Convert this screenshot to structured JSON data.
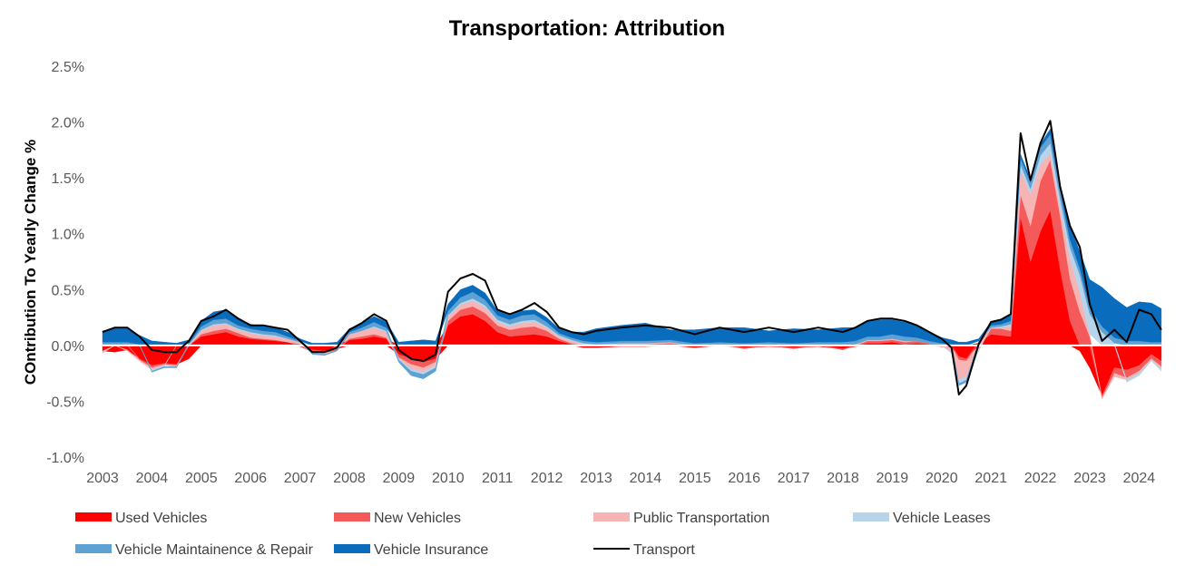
{
  "chart_data": {
    "type": "area",
    "title": "Transportation: Attribution",
    "xlabel": "",
    "ylabel": "COntribution To Yearly Change %",
    "ylim": [
      -0.01,
      0.025
    ],
    "y_ticks": [
      "2.5%",
      "2.0%",
      "1.5%",
      "1.0%",
      "0.5%",
      "0.0%",
      "-0.5%",
      "-1.0%"
    ],
    "y_tick_values": [
      0.025,
      0.02,
      0.015,
      0.01,
      0.005,
      0.0,
      -0.005,
      -0.01
    ],
    "x_ticks": [
      "2003",
      "2004",
      "2005",
      "2006",
      "2007",
      "2008",
      "2009",
      "2010",
      "2011",
      "2012",
      "2013",
      "2014",
      "2015",
      "2016",
      "2017",
      "2018",
      "2019",
      "2020",
      "2021",
      "2022",
      "2023",
      "2024"
    ],
    "xlim": [
      2003.0,
      2024.45
    ],
    "x": [
      2003.0,
      2003.25,
      2003.5,
      2003.75,
      2004.0,
      2004.25,
      2004.5,
      2004.75,
      2005.0,
      2005.25,
      2005.5,
      2005.75,
      2006.0,
      2006.25,
      2006.5,
      2006.75,
      2007.0,
      2007.25,
      2007.5,
      2007.75,
      2008.0,
      2008.25,
      2008.5,
      2008.75,
      2009.0,
      2009.25,
      2009.5,
      2009.75,
      2010.0,
      2010.25,
      2010.5,
      2010.75,
      2011.0,
      2011.25,
      2011.5,
      2011.75,
      2012.0,
      2012.25,
      2012.5,
      2012.75,
      2013.0,
      2013.5,
      2014.0,
      2014.5,
      2015.0,
      2015.5,
      2016.0,
      2016.5,
      2017.0,
      2017.5,
      2018.0,
      2018.25,
      2018.5,
      2018.75,
      2019.0,
      2019.25,
      2019.5,
      2019.75,
      2020.0,
      2020.2,
      2020.35,
      2020.5,
      2020.75,
      2021.0,
      2021.2,
      2021.4,
      2021.6,
      2021.8,
      2022.0,
      2022.2,
      2022.4,
      2022.6,
      2022.8,
      2023.0,
      2023.25,
      2023.5,
      2023.75,
      2024.0,
      2024.25,
      2024.45
    ],
    "series": [
      {
        "name": "Used Vehicles",
        "color": "#ff0000",
        "values": [
          -0.0005,
          -0.0006,
          -0.0004,
          -0.0012,
          -0.0018,
          -0.0016,
          -0.0017,
          -0.0012,
          0.0008,
          0.001,
          0.0012,
          0.0008,
          0.0006,
          0.0005,
          0.0004,
          0.0003,
          0.0001,
          -0.0004,
          -0.0005,
          -0.0003,
          0.0005,
          0.0006,
          0.0008,
          0.0006,
          -0.0008,
          -0.0012,
          -0.0015,
          -0.0012,
          0.0018,
          0.0026,
          0.0028,
          0.0022,
          0.0012,
          0.0008,
          0.0009,
          0.001,
          0.0008,
          0.0004,
          0.0001,
          -0.0002,
          -0.0002,
          -0.0001,
          -0.0001,
          0.0001,
          -0.0002,
          0.0001,
          -0.0002,
          -0.0001,
          -0.0002,
          -0.0001,
          -0.0003,
          -0.0001,
          0.0002,
          0.0002,
          0.0003,
          0.0001,
          0.0002,
          0.0001,
          -0.0001,
          -0.0002,
          -0.001,
          -0.0012,
          0.0002,
          0.001,
          0.0009,
          0.0008,
          0.0115,
          0.0075,
          0.0102,
          0.0121,
          0.0068,
          0.0022,
          -0.0005,
          -0.002,
          -0.0045,
          -0.002,
          -0.0022,
          -0.0018,
          -0.0008,
          -0.0014
        ]
      },
      {
        "name": "New Vehicles",
        "color": "#f55a5a",
        "values": [
          0.0001,
          0.0,
          0.0001,
          -0.0001,
          -0.0002,
          -0.0001,
          -0.0001,
          0.0,
          0.0002,
          0.0003,
          0.0003,
          0.0003,
          0.0001,
          0.0001,
          0.0001,
          0.0,
          -0.0001,
          -0.0002,
          -0.0002,
          -0.0001,
          0.0001,
          0.0002,
          0.0002,
          0.0001,
          -0.0003,
          -0.0005,
          -0.0005,
          -0.0003,
          0.0004,
          0.0006,
          0.0007,
          0.0007,
          0.0006,
          0.0006,
          0.0007,
          0.0007,
          0.0005,
          0.0002,
          0.0001,
          0.0,
          0.0,
          0.0001,
          0.0001,
          0.0001,
          0.0,
          0.0,
          -0.0001,
          0.0,
          -0.0001,
          0.0,
          -0.0001,
          0.0,
          0.0002,
          0.0002,
          0.0002,
          0.0002,
          0.0002,
          0.0001,
          0.0,
          0.0,
          -0.0003,
          -0.0002,
          0.0001,
          0.0005,
          0.0006,
          0.0005,
          0.002,
          0.0032,
          0.0045,
          0.0045,
          0.0048,
          0.0038,
          0.003,
          0.0008,
          -0.0002,
          -0.0005,
          -0.0007,
          -0.0005,
          -0.0004,
          -0.0005
        ]
      },
      {
        "name": "Public Transportation",
        "color": "#f7b4b4",
        "values": [
          -0.0002,
          0.0,
          -0.0001,
          -0.0001,
          -0.0002,
          -0.0001,
          -0.0001,
          0.0001,
          0.0003,
          0.0005,
          0.0004,
          0.0003,
          0.0004,
          0.0003,
          0.0003,
          0.0003,
          0.0002,
          -0.0001,
          -0.0001,
          0.0,
          0.0004,
          0.0005,
          0.0006,
          0.0005,
          -0.0001,
          -0.0004,
          -0.0004,
          -0.0003,
          0.0004,
          0.0004,
          0.0005,
          0.0005,
          0.0003,
          0.0003,
          0.0004,
          0.0004,
          0.0003,
          0.0002,
          0.0002,
          0.0001,
          0.0001,
          0.0001,
          0.0001,
          0.0001,
          0.0,
          0.0,
          0.0,
          0.0001,
          0.0,
          0.0001,
          0.0,
          0.0001,
          0.0001,
          0.0001,
          0.0001,
          0.0001,
          0.0,
          0.0,
          0.0,
          -0.0004,
          -0.0018,
          -0.0014,
          -0.0004,
          0.0001,
          0.0001,
          0.0004,
          0.0022,
          0.0028,
          0.0015,
          0.0006,
          0.0006,
          0.0018,
          0.0017,
          0.0002,
          -0.0001,
          -0.0003,
          -0.0002,
          -0.0002,
          -0.0001,
          -0.0002
        ]
      },
      {
        "name": "Vehicle Leases",
        "color": "#b8d4ea",
        "values": [
          0.0,
          0.0,
          0.0,
          0.0,
          -0.0001,
          -0.0001,
          0.0,
          0.0,
          0.0001,
          0.0001,
          0.0001,
          0.0001,
          0.0001,
          0.0001,
          0.0001,
          0.0,
          0.0,
          0.0,
          0.0,
          0.0,
          0.0,
          0.0,
          0.0001,
          0.0001,
          -0.0001,
          -0.0002,
          -0.0002,
          -0.0002,
          0.0001,
          0.0002,
          0.0002,
          0.0002,
          0.0002,
          0.0002,
          0.0002,
          0.0002,
          0.0001,
          0.0001,
          0.0001,
          0.0001,
          0.0,
          0.0,
          0.0,
          0.0,
          0.0,
          0.0,
          0.0,
          0.0,
          0.0,
          0.0,
          0.0,
          0.0,
          0.0,
          0.0,
          0.0,
          0.0,
          0.0,
          0.0,
          0.0,
          -0.0001,
          -0.0003,
          -0.0003,
          -0.0001,
          0.0,
          0.0001,
          0.0002,
          0.0005,
          0.0005,
          0.0008,
          0.0009,
          0.0009,
          0.001,
          0.0016,
          0.0018,
          0.0012,
          0.0002,
          -0.0002,
          -0.0002,
          -0.0001,
          -0.0002
        ]
      },
      {
        "name": "Vehicle Maintainence & Repair",
        "color": "#5ea1d3",
        "values": [
          0.0002,
          0.0003,
          0.0002,
          0.0001,
          -0.0001,
          -0.0001,
          -0.0001,
          0.0001,
          0.0003,
          0.0004,
          0.0004,
          0.0003,
          0.0003,
          0.0003,
          0.0003,
          0.0002,
          0.0001,
          -0.0001,
          -0.0001,
          -0.0001,
          0.0002,
          0.0003,
          0.0004,
          0.0003,
          -0.0002,
          -0.0004,
          -0.0004,
          -0.0003,
          0.0004,
          0.0005,
          0.0006,
          0.0005,
          0.0004,
          0.0004,
          0.0005,
          0.0005,
          0.0004,
          0.0002,
          0.0002,
          0.0002,
          0.0002,
          0.0002,
          0.0002,
          0.0002,
          0.0002,
          0.0002,
          0.0002,
          0.0002,
          0.0002,
          0.0002,
          0.0003,
          0.0003,
          0.0003,
          0.0003,
          0.0004,
          0.0004,
          0.0003,
          0.0002,
          0.0002,
          0.0001,
          -0.0002,
          -0.0002,
          0.0001,
          0.0002,
          0.0002,
          0.0003,
          0.0006,
          0.0006,
          0.0007,
          0.0008,
          0.0008,
          0.0007,
          0.0006,
          0.0006,
          0.0005,
          0.0005,
          0.0004,
          0.0004,
          0.0003,
          0.0003
        ]
      },
      {
        "name": "Vehicle Insurance",
        "color": "#0a6cbd",
        "values": [
          0.001,
          0.0012,
          0.0012,
          0.0008,
          0.0004,
          0.0003,
          0.0002,
          0.0003,
          0.0005,
          0.0007,
          0.0008,
          0.0006,
          0.0004,
          0.0004,
          0.0004,
          0.0004,
          0.0002,
          0.0002,
          0.0002,
          0.0003,
          0.0003,
          0.0004,
          0.0005,
          0.0005,
          0.0003,
          0.0004,
          0.0005,
          0.0004,
          0.0006,
          0.0007,
          0.0006,
          0.0006,
          0.0004,
          0.0004,
          0.0004,
          0.0004,
          0.0004,
          0.0004,
          0.0005,
          0.0008,
          0.0012,
          0.0014,
          0.0016,
          0.0009,
          0.0012,
          0.0013,
          0.0014,
          0.001,
          0.0013,
          0.0011,
          0.0013,
          0.0012,
          0.0014,
          0.0015,
          0.0013,
          0.0013,
          0.0011,
          0.0008,
          0.0005,
          0.0004,
          0.0003,
          0.0003,
          0.0002,
          0.0003,
          0.0004,
          0.0006,
          0.0003,
          0.0003,
          0.0003,
          0.0005,
          0.0005,
          0.0012,
          0.0015,
          0.0025,
          0.0035,
          0.0035,
          0.003,
          0.0035,
          0.0035,
          0.003
        ]
      }
    ],
    "line_series": {
      "name": "Transport",
      "color": "#000000",
      "values": [
        0.0012,
        0.0016,
        0.0016,
        0.0008,
        -0.0004,
        -0.0006,
        -0.0006,
        0.0004,
        0.0022,
        0.0026,
        0.0032,
        0.0024,
        0.0018,
        0.0018,
        0.0016,
        0.0014,
        0.0004,
        -0.0006,
        -0.0006,
        -0.0002,
        0.0014,
        0.002,
        0.0028,
        0.0022,
        -0.0004,
        -0.0012,
        -0.0014,
        -0.0008,
        0.0048,
        0.006,
        0.0064,
        0.0058,
        0.0032,
        0.0028,
        0.0032,
        0.0038,
        0.003,
        0.0016,
        0.0012,
        0.001,
        0.0013,
        0.0016,
        0.0018,
        0.0016,
        0.001,
        0.0016,
        0.0012,
        0.0016,
        0.0012,
        0.0016,
        0.0012,
        0.0016,
        0.0022,
        0.0024,
        0.0024,
        0.0022,
        0.0018,
        0.0012,
        0.0006,
        -0.0002,
        -0.0044,
        -0.0036,
        0.0001,
        0.0021,
        0.0023,
        0.0028,
        0.019,
        0.0148,
        0.0181,
        0.0201,
        0.0142,
        0.0107,
        0.0088,
        0.0037,
        0.0004,
        0.0014,
        0.0003,
        0.0032,
        0.0028,
        0.0014
      ]
    },
    "legend": [
      {
        "label": "Used Vehicles",
        "color": "#ff0000",
        "kind": "swatch"
      },
      {
        "label": "New Vehicles",
        "color": "#f55a5a",
        "kind": "swatch"
      },
      {
        "label": "Public Transportation",
        "color": "#f7b4b4",
        "kind": "swatch"
      },
      {
        "label": "Vehicle Leases",
        "color": "#b8d4ea",
        "kind": "swatch"
      },
      {
        "label": "Vehicle Maintainence & Repair",
        "color": "#5ea1d3",
        "kind": "swatch"
      },
      {
        "label": "Vehicle Insurance",
        "color": "#0a6cbd",
        "kind": "swatch"
      },
      {
        "label": "Transport",
        "color": "#000000",
        "kind": "line"
      }
    ],
    "legend_position": "bottom",
    "grid": false
  }
}
